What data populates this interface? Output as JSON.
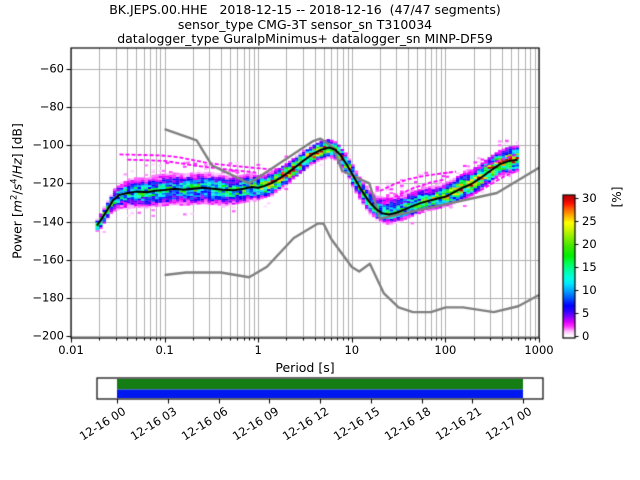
{
  "title": {
    "line1": "BK.JEPS.00.HHE   2018-12-15 -- 2018-12-16  (47/47 segments)",
    "line2": "sensor_type CMG-3T sensor_sn T310034",
    "line3": "datalogger_type GuralpMinimus+ datalogger_sn MINP-DF59"
  },
  "axes": {
    "xlabel": "Period [s]",
    "ylabel": {
      "prefix": "Power [",
      "m": "m",
      "m_exp": "2",
      "slash1": "/",
      "s": "s",
      "s_exp": "4",
      "slash2": "/",
      "hz": "Hz",
      "suffix": "] [dB]"
    }
  },
  "colorbar_label": "[%]",
  "chart_data": {
    "type": "heatmap",
    "title": "BK.JEPS.00.HHE   2018-12-15 -- 2018-12-16  (47/47 segments)",
    "xlabel": "Period [s]",
    "ylabel": "Power [m2/s4/Hz] [dB]",
    "xscale": "log",
    "xlim": [
      0.01,
      1000
    ],
    "ylim": [
      -201,
      -49
    ],
    "grid": true,
    "grid_color": "#b0b0b0",
    "noise_model_color": "#808080",
    "mean_color": "#000000",
    "outlier_color": "#ff00ff",
    "x_ticks": [
      {
        "v": 0.01,
        "label": "0.01"
      },
      {
        "v": 0.1,
        "label": "0.1"
      },
      {
        "v": 1,
        "label": "1"
      },
      {
        "v": 10,
        "label": "10"
      },
      {
        "v": 100,
        "label": "100"
      },
      {
        "v": 1000,
        "label": "1000"
      }
    ],
    "y_ticks": [
      {
        "v": -60,
        "label": "−60"
      },
      {
        "v": -80,
        "label": "−80"
      },
      {
        "v": -100,
        "label": "−100"
      },
      {
        "v": -120,
        "label": "−120"
      },
      {
        "v": -140,
        "label": "−140"
      },
      {
        "v": -160,
        "label": "−160"
      },
      {
        "v": -180,
        "label": "−180"
      },
      {
        "v": -200,
        "label": "−200"
      }
    ],
    "colorbar": {
      "label": "[%]",
      "min": 0,
      "max": 30,
      "ticks": [
        {
          "v": 0,
          "label": "0"
        },
        {
          "v": 5,
          "label": "5"
        },
        {
          "v": 10,
          "label": "10"
        },
        {
          "v": 15,
          "label": "15"
        },
        {
          "v": 20,
          "label": "20"
        },
        {
          "v": 25,
          "label": "25"
        },
        {
          "v": 30,
          "label": "30"
        }
      ]
    },
    "colormap_stops": [
      [
        0.0,
        "#ffffff"
      ],
      [
        0.03,
        "#ffc8ff"
      ],
      [
        0.07,
        "#ff30ff"
      ],
      [
        0.1,
        "#e000ff"
      ],
      [
        0.14,
        "#8000ff"
      ],
      [
        0.18,
        "#3000ff"
      ],
      [
        0.22,
        "#0000ff"
      ],
      [
        0.28,
        "#0060ff"
      ],
      [
        0.33,
        "#00a8ff"
      ],
      [
        0.38,
        "#00e8ff"
      ],
      [
        0.42,
        "#00ffe0"
      ],
      [
        0.48,
        "#00ffa0"
      ],
      [
        0.53,
        "#00ff50"
      ],
      [
        0.58,
        "#00f000"
      ],
      [
        0.65,
        "#40e800"
      ],
      [
        0.72,
        "#90f000"
      ],
      [
        0.78,
        "#d8f800"
      ],
      [
        0.82,
        "#ffff00"
      ],
      [
        0.87,
        "#ffb000"
      ],
      [
        0.92,
        "#ff6000"
      ],
      [
        0.96,
        "#ff1000"
      ],
      [
        1.0,
        "#c80000"
      ]
    ],
    "mean_curve": [
      [
        0.019,
        -142
      ],
      [
        0.021,
        -139
      ],
      [
        0.024,
        -134.5
      ],
      [
        0.028,
        -129
      ],
      [
        0.033,
        -126
      ],
      [
        0.04,
        -125
      ],
      [
        0.05,
        -124.3
      ],
      [
        0.065,
        -124.6
      ],
      [
        0.08,
        -123.8
      ],
      [
        0.1,
        -123.4
      ],
      [
        0.13,
        -122.8
      ],
      [
        0.16,
        -123.3
      ],
      [
        0.2,
        -122.8
      ],
      [
        0.26,
        -122.3
      ],
      [
        0.33,
        -122.8
      ],
      [
        0.42,
        -123.3
      ],
      [
        0.55,
        -123.6
      ],
      [
        0.7,
        -122.8
      ],
      [
        0.85,
        -121.9
      ],
      [
        1.0,
        -122.3
      ],
      [
        1.15,
        -121.4
      ],
      [
        1.4,
        -119.8
      ],
      [
        1.8,
        -116.5
      ],
      [
        2.3,
        -112.8
      ],
      [
        3.0,
        -108.3
      ],
      [
        3.8,
        -104.7
      ],
      [
        4.7,
        -102.3
      ],
      [
        5.7,
        -101.2
      ],
      [
        6.6,
        -102.2
      ],
      [
        7.6,
        -105.2
      ],
      [
        8.8,
        -110.0
      ],
      [
        10.5,
        -116.5
      ],
      [
        12.5,
        -123.0
      ],
      [
        15.0,
        -129.0
      ],
      [
        18.0,
        -133.3
      ],
      [
        21.0,
        -135.6
      ],
      [
        25.0,
        -136.3
      ],
      [
        30.0,
        -135.4
      ],
      [
        37.0,
        -133.6
      ],
      [
        45.0,
        -131.8
      ],
      [
        55.0,
        -130.2
      ],
      [
        70.0,
        -128.8
      ],
      [
        85.0,
        -127.8
      ],
      [
        100.0,
        -127.0
      ],
      [
        120.0,
        -125.0
      ],
      [
        150.0,
        -122.5
      ],
      [
        190.0,
        -120.3
      ],
      [
        240.0,
        -117.0
      ],
      [
        300.0,
        -113.5
      ],
      [
        380.0,
        -110.0
      ],
      [
        480.0,
        -108.2
      ],
      [
        591.0,
        -107.6
      ]
    ],
    "band": [
      [
        -1.74,
        2.5,
        3.0,
        20.0
      ],
      [
        -1.6,
        4.0,
        5.0,
        15.0
      ],
      [
        -1.42,
        6.5,
        8.0,
        13.0
      ],
      [
        -1.0,
        8.0,
        8.5,
        12.5
      ],
      [
        -0.4,
        7.5,
        8.0,
        13.5
      ],
      [
        0.0,
        6.5,
        6.5,
        16.0
      ],
      [
        0.22,
        5.5,
        6.0,
        24.0
      ],
      [
        0.5,
        4.5,
        5.0,
        27.0
      ],
      [
        0.8,
        4.0,
        4.5,
        26.0
      ],
      [
        1.0,
        5.0,
        5.5,
        19.0
      ],
      [
        1.2,
        6.0,
        5.5,
        15.0
      ],
      [
        1.38,
        9.0,
        5.0,
        13.0
      ],
      [
        1.6,
        8.0,
        5.0,
        15.0
      ],
      [
        1.85,
        6.5,
        5.0,
        17.0
      ],
      [
        2.05,
        6.5,
        5.5,
        20.0
      ],
      [
        2.3,
        7.0,
        6.0,
        24.0
      ],
      [
        2.78,
        7.0,
        6.0,
        24.0
      ]
    ],
    "period_bin_step_decades": 0.0374,
    "outlier_streaks": [
      [
        [
          0.033,
          -104.8
        ],
        [
          0.09,
          -105.3
        ],
        [
          0.14,
          -106.2
        ],
        [
          0.3,
          -109.5
        ],
        [
          0.6,
          -111.0
        ],
        [
          1.2,
          -112.4
        ],
        [
          1.9,
          -112.8
        ]
      ],
      [
        [
          0.04,
          -107.5
        ],
        [
          0.1,
          -108.2
        ],
        [
          0.22,
          -110.8
        ],
        [
          0.5,
          -112.8
        ],
        [
          0.95,
          -114.3
        ]
      ],
      [
        [
          20,
          -124.0
        ],
        [
          28,
          -120.5
        ],
        [
          40,
          -117.8
        ],
        [
          60,
          -116.0
        ],
        [
          90,
          -114.8
        ],
        [
          130,
          -113.8
        ]
      ],
      [
        [
          22,
          -130.0
        ],
        [
          30,
          -126.5
        ],
        [
          45,
          -122.5
        ],
        [
          70,
          -119.5
        ],
        [
          100,
          -117.8
        ]
      ],
      [
        [
          150,
          -115.5
        ],
        [
          250,
          -111.5
        ],
        [
          400,
          -107.5
        ],
        [
          580,
          -104.8
        ]
      ],
      [
        [
          160,
          -128.0
        ],
        [
          260,
          -122.5
        ],
        [
          420,
          -116.5
        ],
        [
          580,
          -113.5
        ]
      ]
    ],
    "noise_models": {
      "high": [
        [
          0.1,
          -91.5
        ],
        [
          0.22,
          -97.4
        ],
        [
          0.32,
          -110.5
        ],
        [
          0.8,
          -120.0
        ],
        [
          3.8,
          -98.0
        ],
        [
          4.6,
          -96.5
        ],
        [
          6.3,
          -101.0
        ],
        [
          7.9,
          -113.5
        ],
        [
          15.4,
          -120.0
        ],
        [
          20.0,
          -138.5
        ],
        [
          354.8,
          -125.0
        ],
        [
          1000,
          -111.8
        ]
      ],
      "low": [
        [
          0.1,
          -168.0
        ],
        [
          0.17,
          -166.7
        ],
        [
          0.4,
          -166.7
        ],
        [
          0.8,
          -169.2
        ],
        [
          1.24,
          -163.7
        ],
        [
          2.4,
          -148.6
        ],
        [
          4.3,
          -141.1
        ],
        [
          5.0,
          -141.1
        ],
        [
          6.0,
          -149.0
        ],
        [
          10.0,
          -163.8
        ],
        [
          12.0,
          -166.2
        ],
        [
          15.6,
          -162.1
        ],
        [
          21.9,
          -177.5
        ],
        [
          31.6,
          -185.0
        ],
        [
          45.0,
          -187.5
        ],
        [
          70.0,
          -187.5
        ],
        [
          101.0,
          -185.0
        ],
        [
          154.0,
          -185.0
        ],
        [
          328.0,
          -187.5
        ],
        [
          600.0,
          -184.4
        ],
        [
          1000.0,
          -178.5
        ]
      ]
    },
    "coverage_bar": {
      "tick_labels": [
        "12-16 00",
        "12-16 03",
        "12-16 06",
        "12-16 09",
        "12-16 12",
        "12-16 15",
        "12-16 18",
        "12-16 21",
        "12-17 00"
      ],
      "fill_top_color": "#147d14",
      "fill_bottom_color": "#0018f0",
      "background": "#ffffff",
      "border_color": "#000000"
    }
  }
}
